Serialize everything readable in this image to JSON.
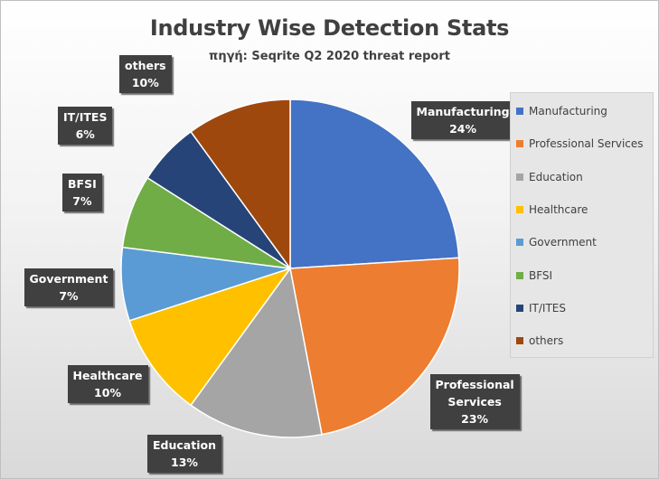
{
  "chart_data": {
    "type": "pie",
    "title": "Industry Wise Detection Stats",
    "subtitle": "πηγή: Seqrite Q2 2020 threat report",
    "categories": [
      "Manufacturing",
      "Professional Services",
      "Education",
      "Healthcare",
      "Government",
      "BFSI",
      "IT/ITES",
      "others"
    ],
    "values": [
      24,
      23,
      13,
      10,
      7,
      7,
      6,
      10
    ],
    "value_labels": [
      "24%",
      "23%",
      "13%",
      "10%",
      "7%",
      "7%",
      "6%",
      "10%"
    ],
    "colors": [
      "#4472C4",
      "#ED7D31",
      "#A5A5A5",
      "#FFC000",
      "#5B9BD5",
      "#70AD47",
      "#264478",
      "#9E480E"
    ],
    "legend_position": "right",
    "start_angle_degrees": 0,
    "direction": "clockwise"
  }
}
